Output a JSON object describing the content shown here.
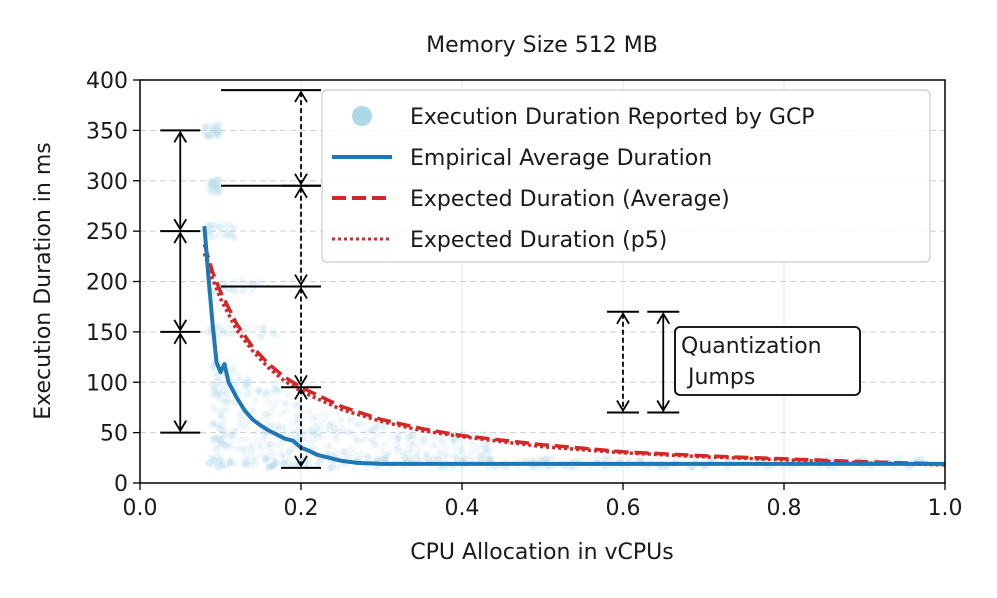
{
  "chart_data": {
    "type": "line",
    "title": "Memory Size 512 MB",
    "xlabel": "CPU Allocation in vCPUs",
    "ylabel": "Execution Duration in ms",
    "xlim": [
      0.0,
      1.0
    ],
    "ylim": [
      0,
      400
    ],
    "xticks": [
      "0.0",
      "0.2",
      "0.4",
      "0.6",
      "0.8",
      "1.0"
    ],
    "yticks": [
      "0",
      "50",
      "100",
      "150",
      "200",
      "250",
      "300",
      "350",
      "400"
    ],
    "grid": true,
    "legend_position": "top-right",
    "series": [
      {
        "name": "Execution Duration Reported by GCP",
        "kind": "scatter-density",
        "color": "#add8e6"
      },
      {
        "name": "Empirical Average Duration",
        "kind": "line",
        "style": "solid",
        "color": "#1f77b4",
        "x": [
          0.08,
          0.085,
          0.09,
          0.095,
          0.1,
          0.105,
          0.11,
          0.12,
          0.13,
          0.14,
          0.15,
          0.16,
          0.17,
          0.18,
          0.19,
          0.2,
          0.21,
          0.22,
          0.23,
          0.24,
          0.25,
          0.27,
          0.3,
          0.35,
          0.4,
          0.5,
          0.6,
          0.7,
          0.8,
          0.9,
          1.0
        ],
        "y": [
          255,
          205,
          160,
          120,
          110,
          118,
          100,
          85,
          72,
          63,
          57,
          52,
          48,
          44,
          42,
          35,
          32,
          28,
          26,
          24,
          22,
          20,
          19,
          19,
          19,
          19,
          19,
          19,
          19,
          19,
          19
        ]
      },
      {
        "name": "Expected Duration (Average)",
        "kind": "line",
        "style": "dashed",
        "color": "#d62728",
        "x": [
          0.08,
          0.09,
          0.1,
          0.12,
          0.14,
          0.16,
          0.18,
          0.2,
          0.25,
          0.3,
          0.35,
          0.4,
          0.5,
          0.6,
          0.7,
          0.8,
          0.9,
          1.0
        ],
        "y": [
          237,
          210,
          190,
          158,
          135,
          118,
          105,
          95,
          76,
          63,
          54,
          47,
          38,
          31,
          27,
          24,
          21,
          19
        ]
      },
      {
        "name": "Expected Duration (p5)",
        "kind": "line",
        "style": "dotted",
        "color": "#d62728",
        "x": [
          0.08,
          0.09,
          0.1,
          0.12,
          0.14,
          0.16,
          0.18,
          0.2,
          0.25,
          0.3,
          0.35,
          0.4,
          0.5,
          0.6,
          0.7,
          0.8,
          0.9,
          1.0
        ],
        "y": [
          228,
          203,
          183,
          152,
          131,
          114,
          101,
          91,
          73,
          61,
          52,
          46,
          36,
          30,
          26,
          23,
          20,
          18
        ]
      }
    ],
    "quantization_levels_left": {
      "x": 0.05,
      "y": [
        350,
        250,
        150,
        50
      ]
    },
    "quantization_levels_right": {
      "x": 0.2,
      "y": [
        390,
        295,
        195,
        95,
        15
      ]
    },
    "quantization_example": {
      "x": [
        0.6,
        0.65
      ],
      "y": [
        170,
        70
      ]
    },
    "annotation": "Quantization\n Jumps"
  }
}
